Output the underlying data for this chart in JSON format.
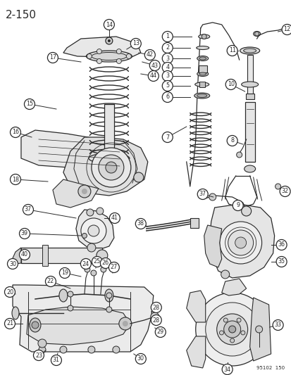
{
  "title": "2-150",
  "background_color": "#ffffff",
  "line_color": "#2a2a2a",
  "circle_bg": "#ffffff",
  "circle_edge": "#2a2a2a",
  "ref_number": "95102  150",
  "fig_width": 4.14,
  "fig_height": 5.33,
  "dpi": 100
}
